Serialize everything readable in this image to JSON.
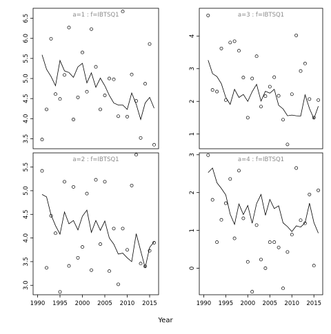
{
  "chart_data": {
    "type": "scatter",
    "xlabel": "Year",
    "ylabel": "",
    "grid": false,
    "panels": [
      {
        "title": "a=1  :  f=IBTSQ1",
        "xlim": [
          1989,
          2017
        ],
        "ylim": [
          3.25,
          6.75
        ],
        "xticks": [],
        "yticks": [
          3.5,
          4.0,
          4.5,
          5.0,
          5.5,
          6.0,
          6.5
        ],
        "points": [
          [
            1991,
            3.48
          ],
          [
            1992,
            4.23
          ],
          [
            1993,
            5.99
          ],
          [
            1994,
            4.61
          ],
          [
            1995,
            4.49
          ],
          [
            1996,
            5.09
          ],
          [
            1997,
            6.27
          ],
          [
            1998,
            3.98
          ],
          [
            1999,
            4.53
          ],
          [
            2000,
            5.65
          ],
          [
            2001,
            4.67
          ],
          [
            2002,
            6.23
          ],
          [
            2003,
            5.29
          ],
          [
            2004,
            4.23
          ],
          [
            2005,
            4.58
          ],
          [
            2006,
            5.0
          ],
          [
            2007,
            4.98
          ],
          [
            2008,
            4.06
          ],
          [
            2009,
            6.67
          ],
          [
            2010,
            4.05
          ],
          [
            2011,
            5.1
          ],
          [
            2012,
            4.44
          ],
          [
            2013,
            3.52
          ],
          [
            2014,
            4.87
          ],
          [
            2015,
            5.86
          ],
          [
            2016,
            3.35
          ]
        ],
        "line": [
          [
            1991,
            5.59
          ],
          [
            1992,
            5.23
          ],
          [
            1993,
            5.05
          ],
          [
            1994,
            4.82
          ],
          [
            1995,
            5.45
          ],
          [
            1996,
            5.19
          ],
          [
            1997,
            5.15
          ],
          [
            1998,
            5.03
          ],
          [
            1999,
            5.29
          ],
          [
            2000,
            5.38
          ],
          [
            2001,
            4.89
          ],
          [
            2002,
            5.14
          ],
          [
            2003,
            4.78
          ],
          [
            2004,
            5.01
          ],
          [
            2005,
            4.82
          ],
          [
            2006,
            4.58
          ],
          [
            2007,
            4.39
          ],
          [
            2008,
            4.34
          ],
          [
            2009,
            4.34
          ],
          [
            2010,
            4.23
          ],
          [
            2011,
            4.64
          ],
          [
            2012,
            4.36
          ],
          [
            2013,
            3.98
          ],
          [
            2014,
            4.39
          ],
          [
            2015,
            4.53
          ],
          [
            2016,
            4.26
          ]
        ]
      },
      {
        "title": "a=3  :  f=IBTSQ1",
        "xlim": [
          1989,
          2017
        ],
        "ylim": [
          0.55,
          4.85
        ],
        "xticks": [],
        "yticks": [
          1,
          2,
          3,
          4
        ],
        "points": [
          [
            1991,
            4.63
          ],
          [
            1992,
            2.35
          ],
          [
            1993,
            2.3
          ],
          [
            1994,
            3.62
          ],
          [
            1995,
            2.04
          ],
          [
            1996,
            3.8
          ],
          [
            1997,
            3.84
          ],
          [
            1998,
            3.55
          ],
          [
            1999,
            2.73
          ],
          [
            2000,
            1.5
          ],
          [
            2001,
            2.7
          ],
          [
            2002,
            3.38
          ],
          [
            2003,
            1.84
          ],
          [
            2004,
            2.16
          ],
          [
            2005,
            2.45
          ],
          [
            2006,
            2.74
          ],
          [
            2007,
            2.17
          ],
          [
            2008,
            1.44
          ],
          [
            2009,
            0.68
          ],
          [
            2010,
            2.22
          ],
          [
            2011,
            4.02
          ],
          [
            2012,
            2.93
          ],
          [
            2013,
            3.16
          ],
          [
            2014,
            2.07
          ],
          [
            2015,
            1.5
          ],
          [
            2016,
            2.04
          ]
        ],
        "line": [
          [
            1991,
            3.26
          ],
          [
            1992,
            2.85
          ],
          [
            1993,
            2.76
          ],
          [
            1994,
            2.54
          ],
          [
            1995,
            2.12
          ],
          [
            1996,
            1.91
          ],
          [
            1997,
            2.37
          ],
          [
            1998,
            2.12
          ],
          [
            1999,
            2.21
          ],
          [
            2000,
            2.0
          ],
          [
            2001,
            2.3
          ],
          [
            2002,
            2.52
          ],
          [
            2003,
            2.01
          ],
          [
            2004,
            2.31
          ],
          [
            2005,
            2.25
          ],
          [
            2006,
            2.37
          ],
          [
            2007,
            1.88
          ],
          [
            2008,
            1.77
          ],
          [
            2009,
            1.56
          ],
          [
            2010,
            1.58
          ],
          [
            2011,
            1.56
          ],
          [
            2012,
            1.55
          ],
          [
            2013,
            2.2
          ],
          [
            2014,
            1.78
          ],
          [
            2015,
            1.47
          ],
          [
            2016,
            1.85
          ]
        ]
      },
      {
        "title": "a=2  :  f=IBTSQ1",
        "xlim": [
          1989,
          2017
        ],
        "ylim": [
          2.8,
          5.8
        ],
        "xticks": [
          1990,
          1995,
          2000,
          2005,
          2010,
          2015
        ],
        "yticks": [
          3.0,
          3.5,
          4.0,
          4.5,
          5.0,
          5.5
        ],
        "points": [
          [
            1991,
            5.42
          ],
          [
            1992,
            3.37
          ],
          [
            1993,
            4.47
          ],
          [
            1994,
            4.1
          ],
          [
            1995,
            2.86
          ],
          [
            1996,
            5.19
          ],
          [
            1997,
            3.41
          ],
          [
            1998,
            5.08
          ],
          [
            1999,
            3.58
          ],
          [
            2000,
            3.81
          ],
          [
            2001,
            4.94
          ],
          [
            2002,
            3.32
          ],
          [
            2003,
            5.23
          ],
          [
            2004,
            3.87
          ],
          [
            2005,
            5.19
          ],
          [
            2006,
            3.3
          ],
          [
            2007,
            4.2
          ],
          [
            2008,
            3.02
          ],
          [
            2009,
            4.2
          ],
          [
            2010,
            3.75
          ],
          [
            2011,
            5.11
          ],
          [
            2012,
            5.76
          ],
          [
            2013,
            3.46
          ],
          [
            2014,
            3.4
          ],
          [
            2015,
            3.73
          ],
          [
            2016,
            3.9
          ]
        ],
        "line": [
          [
            1991,
            4.92
          ],
          [
            1992,
            4.87
          ],
          [
            1993,
            4.49
          ],
          [
            1994,
            4.26
          ],
          [
            1995,
            4.08
          ],
          [
            1996,
            4.55
          ],
          [
            1997,
            4.3
          ],
          [
            1998,
            4.37
          ],
          [
            1999,
            4.17
          ],
          [
            2000,
            4.46
          ],
          [
            2001,
            4.59
          ],
          [
            2002,
            4.12
          ],
          [
            2003,
            4.37
          ],
          [
            2004,
            4.16
          ],
          [
            2005,
            4.36
          ],
          [
            2006,
            4.0
          ],
          [
            2007,
            3.87
          ],
          [
            2008,
            3.66
          ],
          [
            2009,
            3.68
          ],
          [
            2010,
            3.58
          ],
          [
            2011,
            3.5
          ],
          [
            2012,
            4.09
          ],
          [
            2013,
            3.73
          ],
          [
            2014,
            3.37
          ],
          [
            2015,
            3.8
          ],
          [
            2016,
            3.92
          ]
        ]
      },
      {
        "title": "a=4  :  f=IBTSQ1",
        "xlim": [
          1989,
          2017
        ],
        "ylim": [
          -0.7,
          3.05
        ],
        "xticks": [
          1990,
          1995,
          2000,
          2005,
          2010,
          2015
        ],
        "yticks": [
          0,
          1,
          2,
          3
        ],
        "points": [
          [
            1991,
            2.99
          ],
          [
            1992,
            1.81
          ],
          [
            1993,
            0.69
          ],
          [
            1994,
            1.28
          ],
          [
            1995,
            1.72
          ],
          [
            1996,
            2.36
          ],
          [
            1997,
            0.79
          ],
          [
            1998,
            2.58
          ],
          [
            1999,
            1.32
          ],
          [
            2000,
            0.17
          ],
          [
            2001,
            -0.62
          ],
          [
            2002,
            1.14
          ],
          [
            2003,
            0.23
          ],
          [
            2004,
            0.0
          ],
          [
            2005,
            0.69
          ],
          [
            2006,
            0.69
          ],
          [
            2007,
            0.55
          ],
          [
            2008,
            -0.53
          ],
          [
            2009,
            0.43
          ],
          [
            2010,
            0.89
          ],
          [
            2011,
            2.65
          ],
          [
            2012,
            1.27
          ],
          [
            2013,
            1.19
          ],
          [
            2014,
            1.95
          ],
          [
            2015,
            0.07
          ],
          [
            2016,
            2.06
          ]
        ],
        "line": [
          [
            1991,
            2.53
          ],
          [
            1992,
            2.65
          ],
          [
            1993,
            2.26
          ],
          [
            1994,
            2.11
          ],
          [
            1995,
            1.94
          ],
          [
            1996,
            1.43
          ],
          [
            1997,
            1.16
          ],
          [
            1998,
            1.7
          ],
          [
            1999,
            1.42
          ],
          [
            2000,
            1.66
          ],
          [
            2001,
            1.19
          ],
          [
            2002,
            1.71
          ],
          [
            2003,
            1.95
          ],
          [
            2004,
            1.4
          ],
          [
            2005,
            1.82
          ],
          [
            2006,
            1.58
          ],
          [
            2007,
            1.65
          ],
          [
            2008,
            1.2
          ],
          [
            2009,
            1.1
          ],
          [
            2010,
            0.97
          ],
          [
            2011,
            1.12
          ],
          [
            2012,
            1.09
          ],
          [
            2013,
            1.2
          ],
          [
            2014,
            1.72
          ],
          [
            2015,
            1.21
          ],
          [
            2016,
            0.93
          ]
        ]
      }
    ]
  }
}
